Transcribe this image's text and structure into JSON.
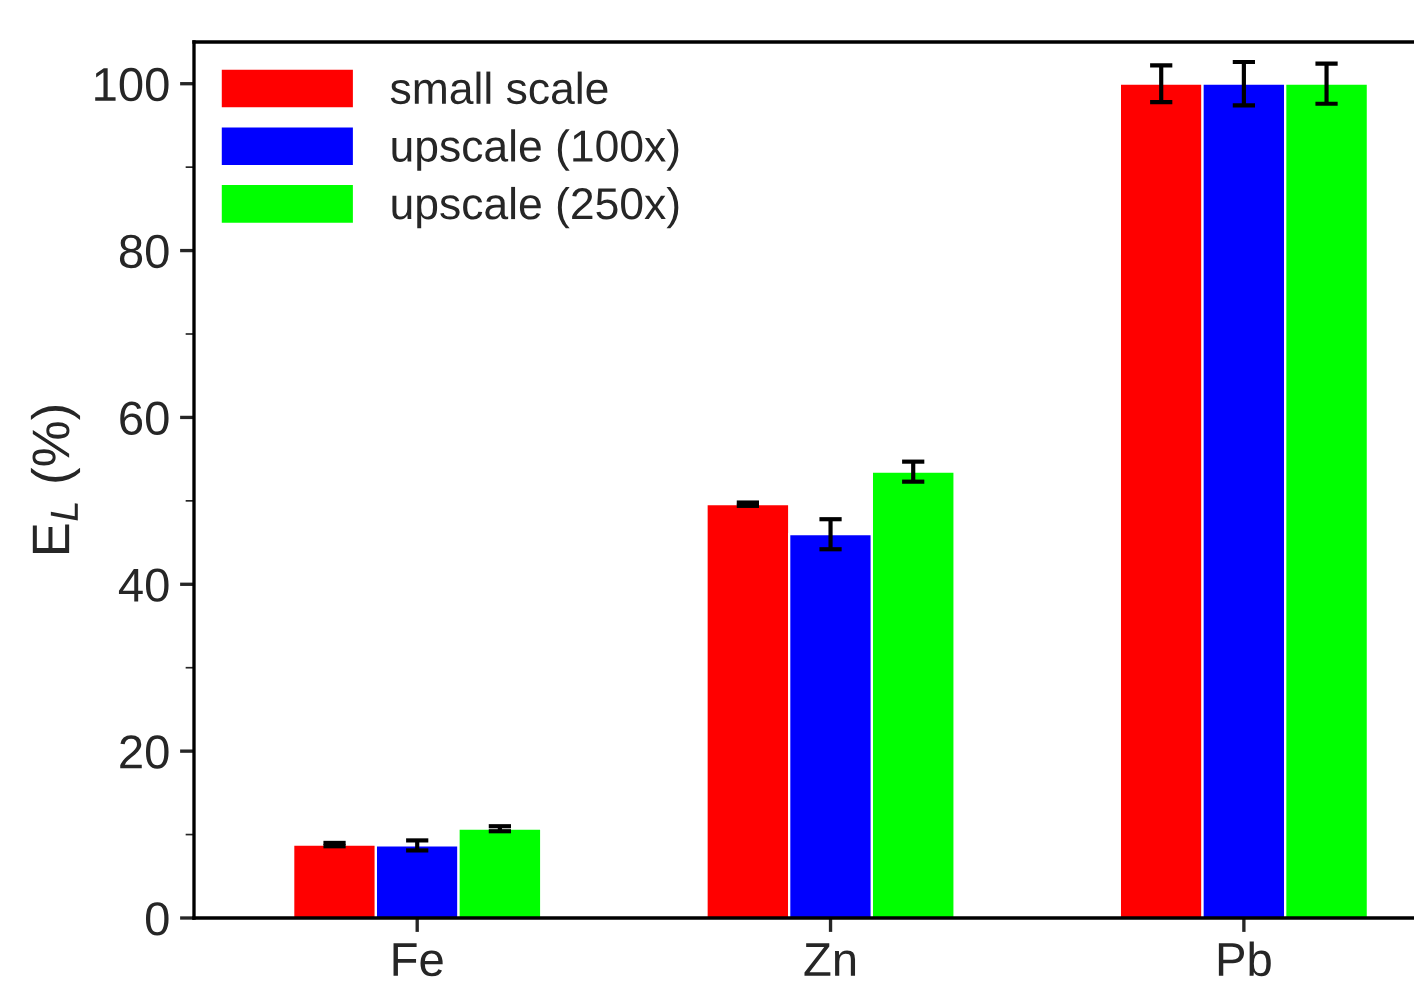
{
  "chart_data": {
    "type": "bar",
    "ylabel": "E$_{L}$ (%)",
    "categories": [
      "Fe",
      "Zn",
      "Pb"
    ],
    "series": [
      {
        "name": "small scale",
        "color": "#ff0000",
        "values": [
          8.8,
          49.6,
          100
        ],
        "errors": [
          0.2,
          0.2,
          2.2
        ]
      },
      {
        "name": "upscale (100x)",
        "color": "#0000ff",
        "values": [
          8.7,
          46.0,
          100
        ],
        "errors": [
          0.6,
          1.8,
          2.6
        ]
      },
      {
        "name": "upscale (250x)",
        "color": "#00ff00",
        "values": [
          10.7,
          53.5,
          100
        ],
        "errors": [
          0.3,
          1.2,
          2.4
        ]
      }
    ],
    "ylim": [
      0,
      105
    ],
    "yticks": [
      0,
      20,
      40,
      60,
      80,
      100
    ],
    "grid": false,
    "legend": "top left"
  }
}
